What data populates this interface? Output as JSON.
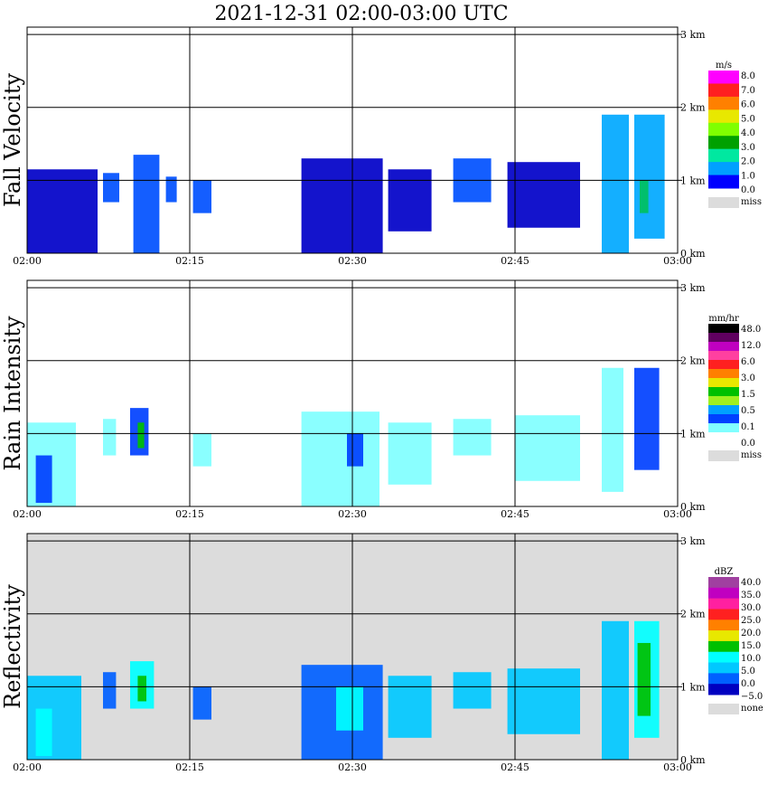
{
  "title": "2021-12-31   02:00-03:00 UTC",
  "colors": {
    "grid": "#000000",
    "missing_bg": "#dcdcdc",
    "miss_swatch": "#dcdcdc"
  },
  "chart_data": [
    {
      "type": "heatmap",
      "name": "fall_velocity",
      "ylabel": "Fall Velocity",
      "x_ticks": [
        "02:00",
        "02:15",
        "02:30",
        "02:45",
        "03:00"
      ],
      "y_ticks": [
        "1 km",
        "2 km",
        "3 km"
      ],
      "y_zero_label": "0 km",
      "xlim": [
        "02:00",
        "03:00"
      ],
      "ylim_km": [
        0,
        3
      ],
      "grid": true,
      "background": "white",
      "legend": {
        "unit": "m/s",
        "labels": [
          "8.0",
          "7.0",
          "6.0",
          "5.0",
          "4.0",
          "3.0",
          "2.0",
          "1.0",
          "0.0"
        ],
        "colors": [
          "#ff00ff",
          "#ff2020",
          "#ff8000",
          "#e8e800",
          "#80ff00",
          "#00a000",
          "#00e8a0",
          "#00a0ff",
          "#0000ff"
        ],
        "missing_label": "miss"
      },
      "cells": [
        {
          "t0": 0.0,
          "t1": 6.5,
          "h0": 0.0,
          "h1": 1.15,
          "v": 0.7
        },
        {
          "t0": 7.0,
          "t1": 8.5,
          "h0": 0.7,
          "h1": 1.1,
          "v": 1.5
        },
        {
          "t0": 9.8,
          "t1": 12.2,
          "h0": 0.0,
          "h1": 1.35,
          "v": 1.2
        },
        {
          "t0": 12.8,
          "t1": 13.8,
          "h0": 0.7,
          "h1": 1.05,
          "v": 1.6
        },
        {
          "t0": 15.3,
          "t1": 17.0,
          "h0": 0.55,
          "h1": 1.0,
          "v": 1.2
        },
        {
          "t0": 25.3,
          "t1": 32.8,
          "h0": 0.0,
          "h1": 1.3,
          "v": 0.6
        },
        {
          "t0": 33.3,
          "t1": 37.3,
          "h0": 0.3,
          "h1": 1.15,
          "v": 0.8
        },
        {
          "t0": 39.3,
          "t1": 42.8,
          "h0": 0.7,
          "h1": 1.3,
          "v": 1.1
        },
        {
          "t0": 44.3,
          "t1": 51.0,
          "h0": 0.35,
          "h1": 1.25,
          "v": 0.9
        },
        {
          "t0": 53.0,
          "t1": 55.5,
          "h0": 0.0,
          "h1": 1.9,
          "v": 2.6
        },
        {
          "t0": 56.0,
          "t1": 58.8,
          "h0": 0.2,
          "h1": 1.9,
          "v": 2.1
        },
        {
          "t0": 56.5,
          "t1": 57.3,
          "h0": 0.55,
          "h1": 1.0,
          "v": 4.5
        }
      ]
    },
    {
      "type": "heatmap",
      "name": "rain_intensity",
      "ylabel": "Rain Intensity",
      "x_ticks": [
        "02:00",
        "02:15",
        "02:30",
        "02:45",
        "03:00"
      ],
      "y_ticks": [
        "1 km",
        "2 km",
        "3 km"
      ],
      "y_zero_label": "0 km",
      "xlim": [
        "02:00",
        "03:00"
      ],
      "ylim_km": [
        0,
        3
      ],
      "grid": true,
      "background": "white",
      "legend": {
        "unit": "mm/hr",
        "labels": [
          "48.0",
          "12.0",
          "6.0",
          "3.0",
          "1.5",
          "0.5",
          "0.1",
          "0.0"
        ],
        "colors": [
          "#000000",
          "#600060",
          "#c000c0",
          "#ff40a0",
          "#ff2020",
          "#ff8000",
          "#e8e800",
          "#00c000",
          "#a0f020",
          "#00a0ff",
          "#0040ff",
          "#80ffff",
          "#ffffff"
        ],
        "missing_label": "miss"
      },
      "cells": [
        {
          "t0": 0.0,
          "t1": 4.5,
          "h0": 0.0,
          "h1": 1.15,
          "v": 0.1
        },
        {
          "t0": 0.8,
          "t1": 2.3,
          "h0": 0.05,
          "h1": 0.7,
          "v": 0.5
        },
        {
          "t0": 7.0,
          "t1": 8.2,
          "h0": 0.7,
          "h1": 1.2,
          "v": 0.1
        },
        {
          "t0": 9.5,
          "t1": 11.2,
          "h0": 0.7,
          "h1": 1.35,
          "v": 0.5
        },
        {
          "t0": 10.2,
          "t1": 10.8,
          "h0": 0.8,
          "h1": 1.15,
          "v": 1.5
        },
        {
          "t0": 15.3,
          "t1": 17.0,
          "h0": 0.55,
          "h1": 1.0,
          "v": 0.1
        },
        {
          "t0": 25.3,
          "t1": 32.5,
          "h0": 0.0,
          "h1": 1.3,
          "v": 0.1
        },
        {
          "t0": 29.5,
          "t1": 31.0,
          "h0": 0.55,
          "h1": 1.0,
          "v": 0.5
        },
        {
          "t0": 33.3,
          "t1": 37.3,
          "h0": 0.3,
          "h1": 1.15,
          "v": 0.1
        },
        {
          "t0": 39.3,
          "t1": 42.8,
          "h0": 0.7,
          "h1": 1.2,
          "v": 0.1
        },
        {
          "t0": 45.0,
          "t1": 51.0,
          "h0": 0.35,
          "h1": 1.25,
          "v": 0.1
        },
        {
          "t0": 53.0,
          "t1": 55.0,
          "h0": 0.2,
          "h1": 1.9,
          "v": 0.1
        },
        {
          "t0": 56.0,
          "t1": 58.3,
          "h0": 0.5,
          "h1": 1.9,
          "v": 0.5
        }
      ]
    },
    {
      "type": "heatmap",
      "name": "reflectivity",
      "ylabel": "Reflectivity",
      "x_ticks": [
        "02:00",
        "02:15",
        "02:30",
        "02:45",
        "03:00"
      ],
      "y_ticks": [
        "1 km",
        "2 km",
        "3 km"
      ],
      "y_zero_label": "0 km",
      "xlim": [
        "02:00",
        "03:00"
      ],
      "ylim_km": [
        0,
        3
      ],
      "grid": true,
      "background": "grey",
      "legend": {
        "unit": "dBZ",
        "labels": [
          "40.0",
          "35.0",
          "30.0",
          "25.0",
          "20.0",
          "15.0",
          "10.0",
          "5.0",
          "0.0",
          "−5.0"
        ],
        "colors": [
          "#a040a0",
          "#c000c0",
          "#ff20a0",
          "#ff2020",
          "#ff8000",
          "#e8e800",
          "#00c000",
          "#00ffff",
          "#00c8ff",
          "#0060ff",
          "#0000c0"
        ],
        "missing_label": "none"
      },
      "cells": [
        {
          "t0": 0.0,
          "t1": 5.0,
          "h0": 0.0,
          "h1": 1.15,
          "v": 5
        },
        {
          "t0": 0.8,
          "t1": 2.3,
          "h0": 0.05,
          "h1": 0.7,
          "v": 10
        },
        {
          "t0": 7.0,
          "t1": 8.2,
          "h0": 0.7,
          "h1": 1.2,
          "v": 3
        },
        {
          "t0": 9.5,
          "t1": 11.7,
          "h0": 0.7,
          "h1": 1.35,
          "v": 10
        },
        {
          "t0": 10.2,
          "t1": 11.0,
          "h0": 0.8,
          "h1": 1.15,
          "v": 17
        },
        {
          "t0": 15.3,
          "t1": 17.0,
          "h0": 0.55,
          "h1": 1.0,
          "v": 0
        },
        {
          "t0": 25.3,
          "t1": 32.8,
          "h0": 0.0,
          "h1": 1.3,
          "v": 3
        },
        {
          "t0": 28.5,
          "t1": 31.0,
          "h0": 0.4,
          "h1": 1.0,
          "v": 10
        },
        {
          "t0": 33.3,
          "t1": 37.3,
          "h0": 0.3,
          "h1": 1.15,
          "v": 5
        },
        {
          "t0": 39.3,
          "t1": 42.8,
          "h0": 0.7,
          "h1": 1.2,
          "v": 5
        },
        {
          "t0": 44.3,
          "t1": 51.0,
          "h0": 0.35,
          "h1": 1.25,
          "v": 5
        },
        {
          "t0": 53.0,
          "t1": 55.5,
          "h0": 0.0,
          "h1": 1.9,
          "v": 8
        },
        {
          "t0": 56.0,
          "t1": 58.3,
          "h0": 0.3,
          "h1": 1.9,
          "v": 10
        },
        {
          "t0": 56.3,
          "t1": 57.5,
          "h0": 0.6,
          "h1": 1.6,
          "v": 17
        }
      ]
    }
  ]
}
